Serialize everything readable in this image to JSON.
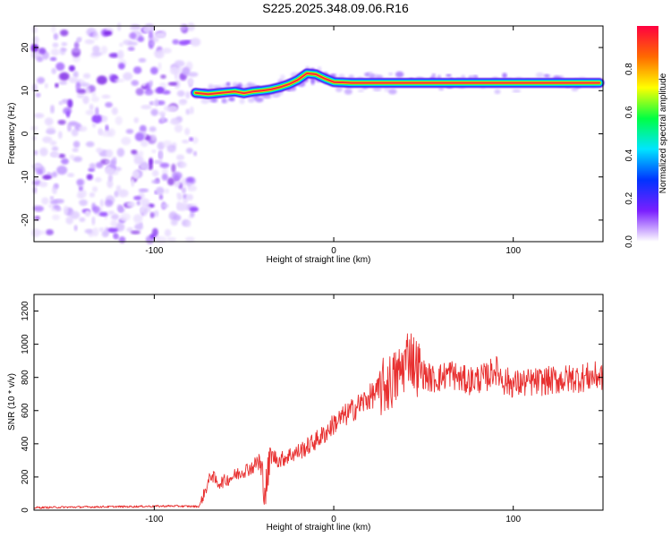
{
  "title": "S225.2025.348.09.06.R16",
  "chart_data": [
    {
      "type": "heatmap",
      "xlabel": "Height of straight line (km)",
      "ylabel": "Frequency (Hz)",
      "xlim": [
        -167,
        150
      ],
      "ylim": [
        -25,
        25
      ],
      "x_ticks": [
        -100,
        0,
        100
      ],
      "y_ticks": [
        -20,
        -10,
        0,
        10,
        20
      ],
      "x_tick_labels": [
        "-100",
        "0",
        "100"
      ],
      "y_tick_labels": [
        "-20",
        "-10",
        "0",
        "10",
        "20"
      ],
      "noise_region_x": [
        -167,
        -77
      ],
      "ridge": {
        "x": [
          -77,
          -70,
          -65,
          -60,
          -55,
          -50,
          -45,
          -40,
          -35,
          -30,
          -25,
          -20,
          -15,
          -10,
          -5,
          0,
          10,
          20,
          30,
          40,
          50,
          60,
          70,
          80,
          90,
          100,
          110,
          120,
          130,
          140,
          148
        ],
        "y": [
          9.5,
          9.2,
          9.4,
          9.6,
          9.8,
          9.4,
          9.8,
          10,
          10.3,
          10.8,
          11.5,
          12.5,
          14,
          13.8,
          12.8,
          12,
          11.8,
          11.8,
          11.8,
          11.8,
          11.8,
          11.8,
          11.8,
          11.8,
          11.8,
          11.8,
          11.8,
          11.8,
          11.8,
          11.8,
          11.8
        ]
      },
      "colorbar": {
        "label": "Normalized spectral amplitude",
        "range": [
          0,
          1
        ],
        "ticks": [
          0,
          0.2,
          0.4,
          0.6,
          0.8
        ],
        "tick_labels": [
          "0.0",
          "0.2",
          "0.4",
          "0.6",
          "0.8"
        ],
        "colormap": [
          "#ffffff",
          "#7a1fff",
          "#0033ff",
          "#00e5ff",
          "#00ff44",
          "#ffff00",
          "#ff6a00",
          "#ff0040"
        ]
      }
    },
    {
      "type": "line",
      "xlabel": "Height of straight line (km)",
      "ylabel": "SNR (10 * v/v)",
      "xlim": [
        -167,
        150
      ],
      "ylim": [
        0,
        1300
      ],
      "x_ticks": [
        -100,
        0,
        100
      ],
      "y_ticks": [
        0,
        200,
        400,
        600,
        800,
        1000,
        1200
      ],
      "x_tick_labels": [
        "-100",
        "0",
        "100"
      ],
      "y_tick_labels": [
        "0",
        "200",
        "400",
        "600",
        "800",
        "1000",
        "1200"
      ],
      "series": [
        {
          "color": "#e83030",
          "x": [
            -167,
            -150,
            -130,
            -110,
            -90,
            -75,
            -68,
            -65,
            -60,
            -55,
            -50,
            -45,
            -42,
            -38,
            -35,
            -30,
            -25,
            -20,
            -15,
            -10,
            -5,
            0,
            5,
            10,
            15,
            20,
            25,
            30,
            35,
            38,
            40,
            42,
            45,
            50,
            55,
            60,
            65,
            70,
            75,
            80,
            85,
            90,
            95,
            100,
            110,
            120,
            130,
            140,
            150
          ],
          "y": [
            15,
            18,
            20,
            22,
            25,
            22,
            220,
            160,
            180,
            210,
            240,
            260,
            300,
            120,
            330,
            300,
            330,
            350,
            380,
            420,
            460,
            520,
            560,
            600,
            640,
            680,
            720,
            760,
            800,
            850,
            900,
            960,
            880,
            820,
            790,
            800,
            830,
            790,
            780,
            790,
            800,
            850,
            780,
            760,
            770,
            780,
            790,
            800,
            810
          ]
        }
      ]
    }
  ]
}
